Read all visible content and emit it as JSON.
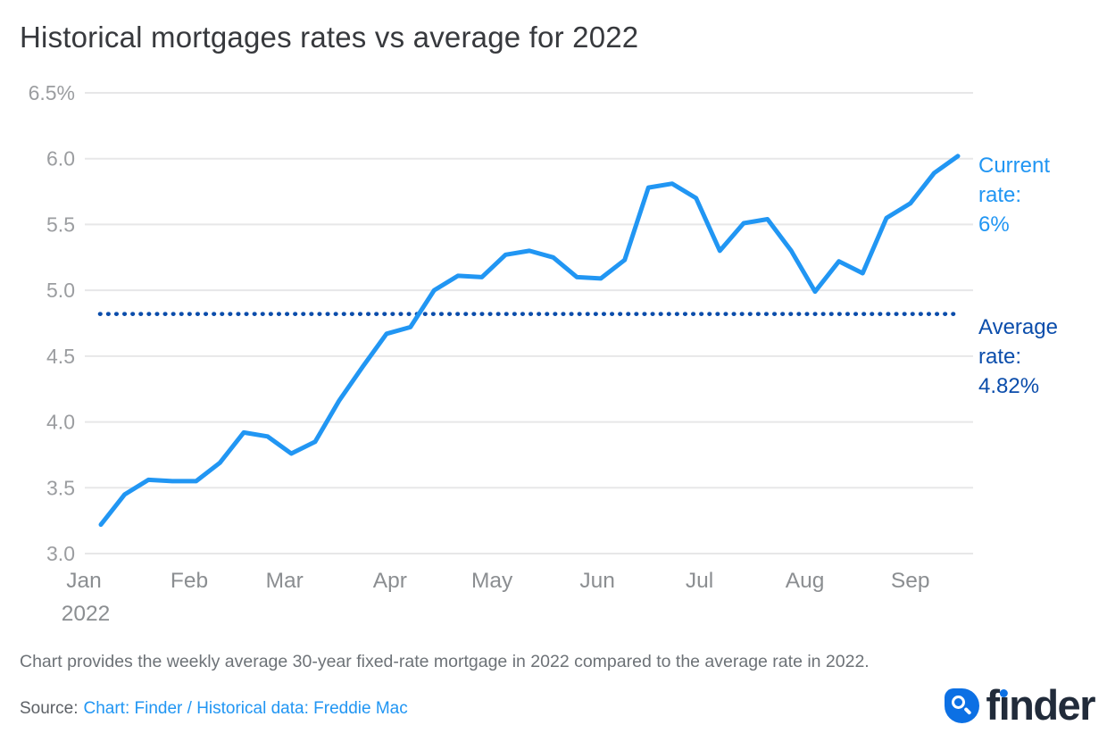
{
  "title": "Historical mortgages rates vs average for 2022",
  "chart_data": {
    "type": "line",
    "title": "Historical mortgages rates vs average for 2022",
    "x_unit": "weekly (Jan 2022 - mid Sep 2022)",
    "ylim": [
      3.0,
      6.5
    ],
    "grid": true,
    "series": [
      {
        "name": "30-year fixed-rate mortgage weekly average",
        "values": [
          3.22,
          3.45,
          3.56,
          3.55,
          3.55,
          3.69,
          3.92,
          3.89,
          3.76,
          3.85,
          4.16,
          4.42,
          4.67,
          4.72,
          5.0,
          5.11,
          5.1,
          5.27,
          5.3,
          5.25,
          5.1,
          5.09,
          5.23,
          5.78,
          5.81,
          5.7,
          5.3,
          5.51,
          5.54,
          5.3,
          4.99,
          5.22,
          5.13,
          5.55,
          5.66,
          5.89,
          6.02
        ]
      }
    ],
    "average_line": {
      "value": 4.82,
      "label": "Average rate:",
      "display_value": "4.82%"
    },
    "current": {
      "value": 6.02,
      "label": "Current rate:",
      "display_value": "6%"
    },
    "y_ticks": [
      {
        "v": 6.5,
        "label": "6.5%"
      },
      {
        "v": 6.0,
        "label": "6.0"
      },
      {
        "v": 5.5,
        "label": "5.5"
      },
      {
        "v": 5.0,
        "label": "5.0"
      },
      {
        "v": 4.5,
        "label": "4.5"
      },
      {
        "v": 4.0,
        "label": "4.0"
      },
      {
        "v": 3.5,
        "label": "3.5"
      },
      {
        "v": 3.0,
        "label": "3.0"
      }
    ],
    "x_ticks": [
      {
        "label": "Jan",
        "sub": "2022",
        "week": -0.714
      },
      {
        "label": "Feb",
        "week": 3.714
      },
      {
        "label": "Mar",
        "week": 7.714
      },
      {
        "label": "Apr",
        "week": 12.143
      },
      {
        "label": "May",
        "week": 16.429
      },
      {
        "label": "Jun",
        "week": 20.857
      },
      {
        "label": "Jul",
        "week": 25.143
      },
      {
        "label": "Aug",
        "week": 29.571
      },
      {
        "label": "Sep",
        "week": 34.0
      }
    ],
    "legend_position": "none",
    "colors": {
      "series": "#2196f3",
      "average": "#0b4dab",
      "grid": "#e7e7e8",
      "y_label": "#9b9da0",
      "x_label": "#8b8e91"
    }
  },
  "footer": {
    "description": "Chart provides the weekly average 30-year fixed-rate mortgage in 2022 compared to the average rate in 2022.",
    "source_label": "Source:",
    "source_link": "Chart: Finder / Historical data: Freddie Mac"
  },
  "logo": {
    "part1": "f",
    "part2": "ı",
    "part3": "nder",
    "brand_blue": "#0c70e4",
    "brand_navy": "#212b3a"
  }
}
